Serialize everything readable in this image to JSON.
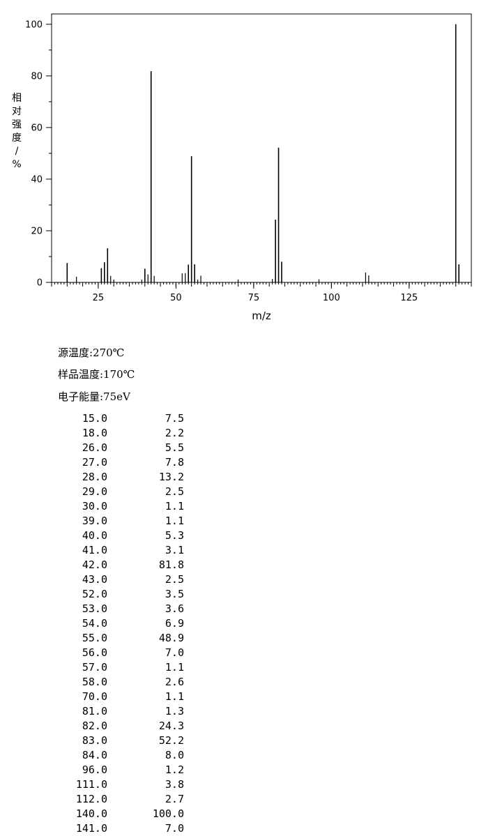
{
  "chart_data": {
    "type": "bar",
    "xlabel": "m/z",
    "ylabel": "相对强度/%",
    "xlim": [
      10,
      145
    ],
    "ylim": [
      0,
      104
    ],
    "xticks": [
      25,
      50,
      75,
      100,
      125
    ],
    "yticks": [
      0,
      20,
      40,
      60,
      80,
      100
    ],
    "peaks": [
      {
        "mz": 15.0,
        "intensity": 7.5
      },
      {
        "mz": 18.0,
        "intensity": 2.2
      },
      {
        "mz": 26.0,
        "intensity": 5.5
      },
      {
        "mz": 27.0,
        "intensity": 7.8
      },
      {
        "mz": 28.0,
        "intensity": 13.2
      },
      {
        "mz": 29.0,
        "intensity": 2.5
      },
      {
        "mz": 30.0,
        "intensity": 1.1
      },
      {
        "mz": 39.0,
        "intensity": 1.1
      },
      {
        "mz": 40.0,
        "intensity": 5.3
      },
      {
        "mz": 41.0,
        "intensity": 3.1
      },
      {
        "mz": 42.0,
        "intensity": 81.8
      },
      {
        "mz": 43.0,
        "intensity": 2.5
      },
      {
        "mz": 52.0,
        "intensity": 3.5
      },
      {
        "mz": 53.0,
        "intensity": 3.6
      },
      {
        "mz": 54.0,
        "intensity": 6.9
      },
      {
        "mz": 55.0,
        "intensity": 48.9
      },
      {
        "mz": 56.0,
        "intensity": 7.0
      },
      {
        "mz": 57.0,
        "intensity": 1.1
      },
      {
        "mz": 58.0,
        "intensity": 2.6
      },
      {
        "mz": 70.0,
        "intensity": 1.1
      },
      {
        "mz": 81.0,
        "intensity": 1.3
      },
      {
        "mz": 82.0,
        "intensity": 24.3
      },
      {
        "mz": 83.0,
        "intensity": 52.2
      },
      {
        "mz": 84.0,
        "intensity": 8.0
      },
      {
        "mz": 96.0,
        "intensity": 1.2
      },
      {
        "mz": 111.0,
        "intensity": 3.8
      },
      {
        "mz": 112.0,
        "intensity": 2.7
      },
      {
        "mz": 140.0,
        "intensity": 100.0
      },
      {
        "mz": 141.0,
        "intensity": 7.0
      }
    ],
    "peak_table": [
      {
        "mz": "15.0",
        "intensity": "7.5"
      },
      {
        "mz": "18.0",
        "intensity": "2.2"
      },
      {
        "mz": "26.0",
        "intensity": "5.5"
      },
      {
        "mz": "27.0",
        "intensity": "7.8"
      },
      {
        "mz": "28.0",
        "intensity": "13.2"
      },
      {
        "mz": "29.0",
        "intensity": "2.5"
      },
      {
        "mz": "30.0",
        "intensity": "1.1"
      },
      {
        "mz": "39.0",
        "intensity": "1.1"
      },
      {
        "mz": "40.0",
        "intensity": "5.3"
      },
      {
        "mz": "41.0",
        "intensity": "3.1"
      },
      {
        "mz": "42.0",
        "intensity": "81.8"
      },
      {
        "mz": "43.0",
        "intensity": "2.5"
      },
      {
        "mz": "52.0",
        "intensity": "3.5"
      },
      {
        "mz": "53.0",
        "intensity": "3.6"
      },
      {
        "mz": "54.0",
        "intensity": "6.9"
      },
      {
        "mz": "55.0",
        "intensity": "48.9"
      },
      {
        "mz": "56.0",
        "intensity": "7.0"
      },
      {
        "mz": "57.0",
        "intensity": "1.1"
      },
      {
        "mz": "58.0",
        "intensity": "2.6"
      },
      {
        "mz": "70.0",
        "intensity": "1.1"
      },
      {
        "mz": "81.0",
        "intensity": "1.3"
      },
      {
        "mz": "82.0",
        "intensity": "24.3"
      },
      {
        "mz": "83.0",
        "intensity": "52.2"
      },
      {
        "mz": "84.0",
        "intensity": "8.0"
      },
      {
        "mz": "96.0",
        "intensity": "1.2"
      },
      {
        "mz": "111.0",
        "intensity": "3.8"
      },
      {
        "mz": "112.0",
        "intensity": "2.7"
      },
      {
        "mz": "140.0",
        "intensity": "100.0"
      },
      {
        "mz": "141.0",
        "intensity": "7.0"
      }
    ]
  },
  "conditions": {
    "source_temp": "源温度:270℃",
    "sample_temp": "样品温度:170℃",
    "electron_energy": "电子能量:75eV"
  }
}
